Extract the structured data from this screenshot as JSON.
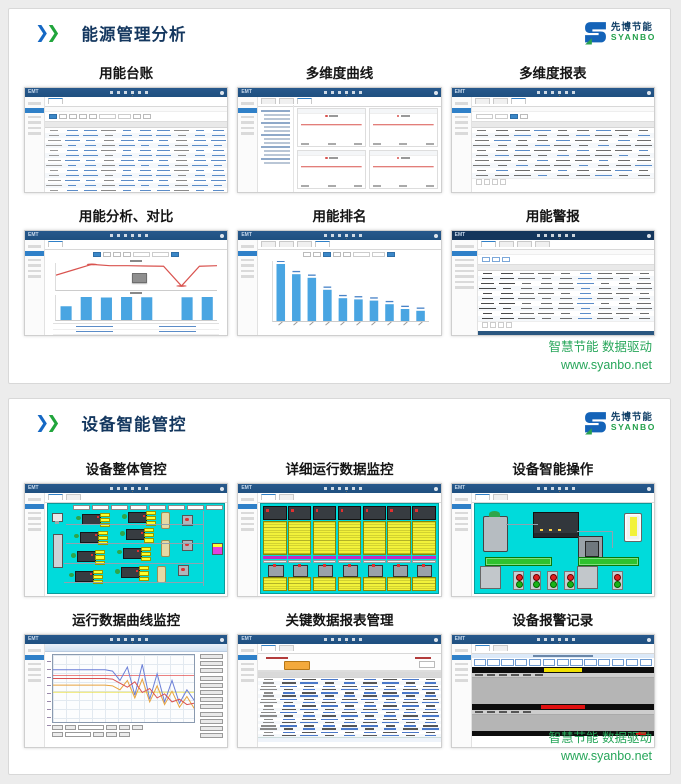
{
  "page": {
    "mini_app_brand": "EMT",
    "logo": {
      "cn": "先博节能",
      "en": "SYANBO"
    },
    "panels": [
      {
        "title": "能源管理分析",
        "thumbs": [
          "用能台账",
          "多维度曲线",
          "多维度报表",
          "用能分析、对比",
          "用能排名",
          "用能警报"
        ],
        "footer": [
          "智慧节能 数据驱动",
          "www.syanbo.net"
        ]
      },
      {
        "title": "设备智能管控",
        "thumbs": [
          "设备整体管控",
          "详细运行数据监控",
          "设备智能操作",
          "运行数据曲线监控",
          "关键数据报表管理",
          "设备报警记录"
        ],
        "footer": [
          "智慧节能 数据驱动",
          "www.syanbo.net"
        ]
      }
    ]
  },
  "colors": {
    "accent_blue": "#1668c4",
    "accent_green": "#21a53c",
    "title_navy": "#14375f",
    "footer_green": "#27a65a",
    "mini_bar_navy": "#1f5080",
    "scada_cyan": "#00dbdb",
    "scada_yellow": "#ffff2e",
    "bar_blue": "#49a5e2",
    "line_red": "#d9534f"
  },
  "chart_data": [
    {
      "id": "multi_curve",
      "type": "line",
      "title": "多维度曲线",
      "panels": 4,
      "series": [
        {
          "name": "能耗曲线",
          "color": "#d9534f",
          "values": [
            72,
            72,
            72,
            72,
            72,
            72,
            72,
            72
          ]
        }
      ],
      "ylim": [
        0,
        100
      ],
      "legend_position": "top"
    },
    {
      "id": "analysis_compare",
      "type": "line+bar",
      "title": "用能分析、对比",
      "line": {
        "color": "#d9534f",
        "values": [
          55,
          75,
          95,
          90,
          90,
          89,
          88,
          15,
          88,
          90
        ],
        "marker_indices": [
          2,
          7
        ]
      },
      "bars": {
        "color": "#49a5e2",
        "values": [
          55,
          92,
          90,
          92,
          91,
          0,
          91,
          92
        ]
      },
      "ylim": [
        0,
        100
      ]
    },
    {
      "id": "ranking",
      "type": "bar",
      "title": "用能排名",
      "values": [
        95,
        78,
        72,
        52,
        38,
        36,
        34,
        28,
        20,
        17
      ],
      "color": "#49a5e2",
      "bar_label_color": "#4a84c8",
      "ylim": [
        0,
        100
      ]
    },
    {
      "id": "trend_monitor",
      "type": "line",
      "title": "运行数据曲线监控",
      "grid": true,
      "ref_lines": [
        {
          "color": "#e03030",
          "y": 70
        },
        {
          "color": "#e6d800",
          "y": 45
        }
      ],
      "series": [
        {
          "name": "curve-blue",
          "color": "#6b7fd7",
          "values": [
            78,
            78,
            78,
            78,
            78,
            78,
            78,
            78,
            76,
            62,
            82,
            40,
            86,
            34,
            72,
            30,
            62,
            28,
            48,
            32
          ]
        },
        {
          "name": "curve-orange",
          "color": "#e8a33d",
          "values": [
            55,
            55,
            55,
            55,
            55,
            55,
            55,
            55,
            54,
            48,
            62,
            36,
            64,
            30,
            54,
            26,
            46,
            22,
            38,
            20
          ]
        },
        {
          "name": "curve-red",
          "color": "#d95252",
          "values": [
            65,
            65,
            65,
            65,
            65,
            65,
            65,
            65,
            64,
            58,
            52,
            60,
            44,
            50,
            36,
            42,
            30,
            34,
            26,
            28
          ]
        }
      ],
      "ylim": [
        0,
        100
      ]
    }
  ]
}
